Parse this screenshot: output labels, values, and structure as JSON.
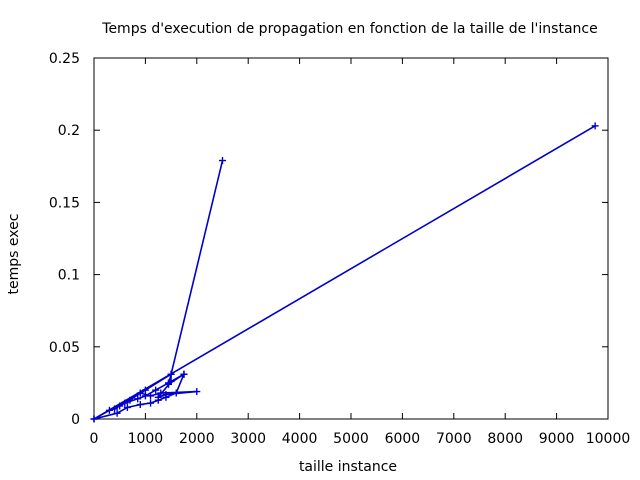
{
  "chart_data": {
    "type": "line",
    "title": "Temps d'execution de propagation en fonction de la taille de l'instance",
    "xlabel": "taille instance",
    "ylabel": "temps exec",
    "xlim": [
      0,
      10000
    ],
    "ylim": [
      0,
      0.25
    ],
    "x_ticks": [
      0,
      1000,
      2000,
      3000,
      4000,
      5000,
      6000,
      7000,
      8000,
      9000,
      10000
    ],
    "y_ticks": [
      0,
      0.05,
      0.1,
      0.15,
      0.2,
      0.25
    ],
    "x_tick_labels": [
      "0",
      "1000",
      "2000",
      "3000",
      "4000",
      "5000",
      "6000",
      "7000",
      "8000",
      "9000",
      "10000"
    ],
    "y_tick_labels": [
      "0",
      "0.05",
      "0.1",
      "0.15",
      "0.2",
      "0.25"
    ],
    "grid": false,
    "marker": "plus",
    "line_color": "#0000cc",
    "series": [
      {
        "x": [
          0,
          450,
          650,
          900,
          1100,
          1250,
          1400,
          1600,
          1750,
          1450,
          1200,
          1000,
          850,
          600,
          400,
          300,
          500,
          700,
          900,
          1100,
          1300,
          2000,
          1400,
          1250,
          1500,
          1750,
          1450,
          1500,
          2500,
          1500,
          1000,
          0,
          9750
        ],
        "y": [
          0,
          0.004,
          0.008,
          0.01,
          0.011,
          0.013,
          0.015,
          0.018,
          0.031,
          0.025,
          0.02,
          0.016,
          0.014,
          0.011,
          0.007,
          0.006,
          0.009,
          0.013,
          0.018,
          0.016,
          0.018,
          0.019,
          0.017,
          0.015,
          0.026,
          0.031,
          0.024,
          0.031,
          0.179,
          0.031,
          0.02,
          0,
          0.203
        ]
      }
    ]
  }
}
